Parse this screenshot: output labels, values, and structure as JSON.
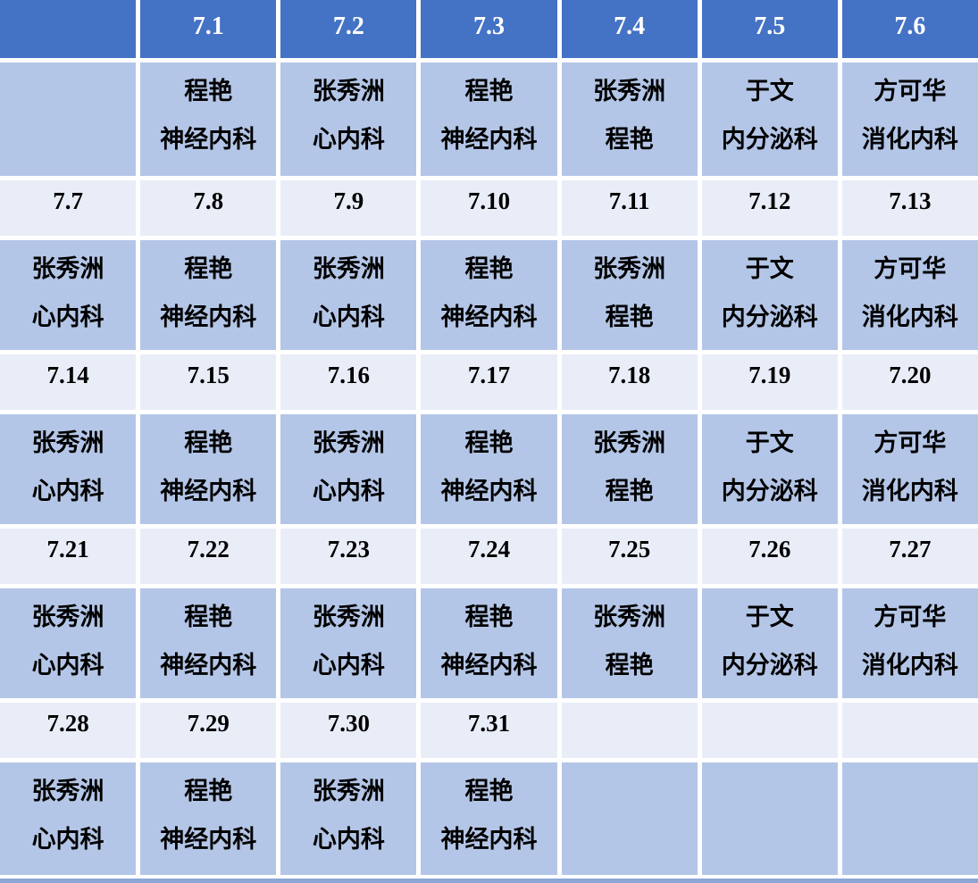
{
  "document": {
    "kind": "monthly-duty-schedule-table",
    "month_prefix": "7"
  },
  "colors": {
    "header_bg": "#4472C4",
    "header_text": "#FFFFFF",
    "date_row_bg": "#E9EDF8",
    "name_row_bg": "#B4C6E7",
    "cell_gap": "#FFFFFF",
    "body_text": "#000000",
    "bottom_strip": "#8CA6D6"
  },
  "rows": [
    {
      "type": "header-dates",
      "cells": [
        "",
        "7.1",
        "7.2",
        "7.3",
        "7.4",
        "7.5",
        "7.6"
      ]
    },
    {
      "type": "names",
      "cells": [
        [
          "",
          ""
        ],
        [
          "程艳",
          "神经内科"
        ],
        [
          "张秀洲",
          "心内科"
        ],
        [
          "程艳",
          "神经内科"
        ],
        [
          "张秀洲",
          "程艳"
        ],
        [
          "于文",
          "内分泌科"
        ],
        [
          "方可华",
          "消化内科"
        ]
      ]
    },
    {
      "type": "dates",
      "cells": [
        "7.7",
        "7.8",
        "7.9",
        "7.10",
        "7.11",
        "7.12",
        "7.13"
      ]
    },
    {
      "type": "names",
      "cells": [
        [
          "张秀洲",
          "心内科"
        ],
        [
          "程艳",
          "神经内科"
        ],
        [
          "张秀洲",
          "心内科"
        ],
        [
          "程艳",
          "神经内科"
        ],
        [
          "张秀洲",
          "程艳"
        ],
        [
          "于文",
          "内分泌科"
        ],
        [
          "方可华",
          "消化内科"
        ]
      ]
    },
    {
      "type": "dates",
      "cells": [
        "7.14",
        "7.15",
        "7.16",
        "7.17",
        "7.18",
        "7.19",
        "7.20"
      ]
    },
    {
      "type": "names",
      "cells": [
        [
          "张秀洲",
          "心内科"
        ],
        [
          "程艳",
          "神经内科"
        ],
        [
          "张秀洲",
          "心内科"
        ],
        [
          "程艳",
          "神经内科"
        ],
        [
          "张秀洲",
          "程艳"
        ],
        [
          "于文",
          "内分泌科"
        ],
        [
          "方可华",
          "消化内科"
        ]
      ]
    },
    {
      "type": "dates",
      "cells": [
        "7.21",
        "7.22",
        "7.23",
        "7.24",
        "7.25",
        "7.26",
        "7.27"
      ]
    },
    {
      "type": "names",
      "cells": [
        [
          "张秀洲",
          "心内科"
        ],
        [
          "程艳",
          "神经内科"
        ],
        [
          "张秀洲",
          "心内科"
        ],
        [
          "程艳",
          "神经内科"
        ],
        [
          "张秀洲",
          "程艳"
        ],
        [
          "于文",
          "内分泌科"
        ],
        [
          "方可华",
          "消化内科"
        ]
      ]
    },
    {
      "type": "dates",
      "cells": [
        "7.28",
        "7.29",
        "7.30",
        "7.31",
        "",
        "",
        ""
      ]
    },
    {
      "type": "names",
      "cells": [
        [
          "张秀洲",
          "心内科"
        ],
        [
          "程艳",
          "神经内科"
        ],
        [
          "张秀洲",
          "心内科"
        ],
        [
          "程艳",
          "神经内科"
        ],
        [
          "",
          ""
        ],
        [
          "",
          ""
        ],
        [
          "",
          ""
        ]
      ]
    }
  ]
}
